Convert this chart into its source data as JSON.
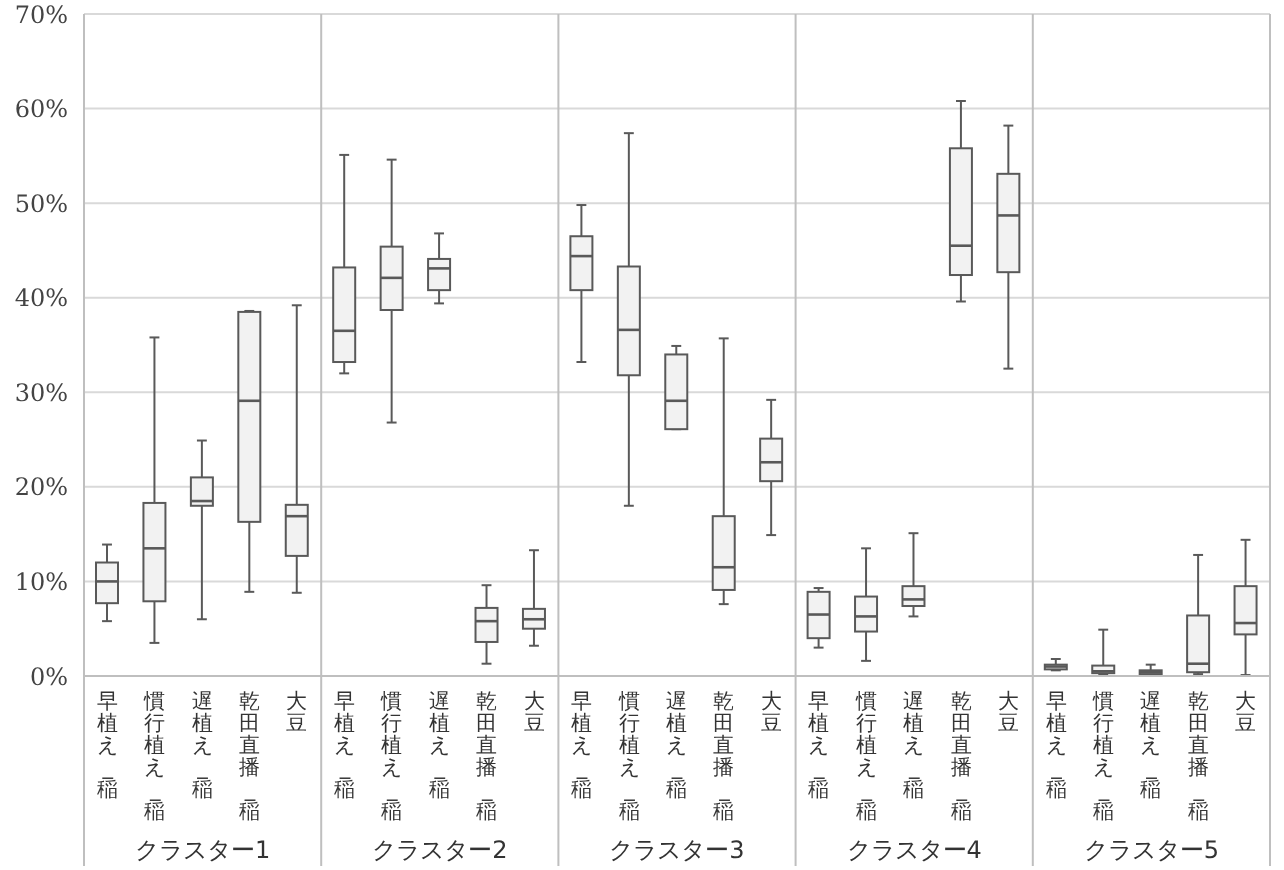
{
  "chart_data": {
    "type": "box",
    "categories": [
      "早植え_稲",
      "慣行植え_稲",
      "遅植え_稲",
      "乾田直播_稲",
      "大豆",
      "早植え_稲",
      "慣行植え_稲",
      "遅植え_稲",
      "乾田直播_稲",
      "大豆",
      "早植え_稲",
      "慣行植え_稲",
      "遅植え_稲",
      "乾田直播_稲",
      "大豆",
      "早植え_稲",
      "慣行植え_稲",
      "遅植え_稲",
      "乾田直播_稲",
      "大豆",
      "早植え_稲",
      "慣行植え_稲",
      "遅植え_稲",
      "乾田直播_稲",
      "大豆"
    ],
    "boxes": [
      {
        "low": 5.8,
        "q1": 7.7,
        "median": 10.0,
        "q3": 12.0,
        "high": 13.9
      },
      {
        "low": 3.5,
        "q1": 7.9,
        "median": 13.5,
        "q3": 18.3,
        "high": 35.8
      },
      {
        "low": 6.0,
        "q1": 18.0,
        "median": 18.5,
        "q3": 21.0,
        "high": 24.9
      },
      {
        "low": 8.9,
        "q1": 16.3,
        "median": 29.1,
        "q3": 38.5,
        "high": 38.6
      },
      {
        "low": 8.8,
        "q1": 12.7,
        "median": 16.9,
        "q3": 18.1,
        "high": 39.2
      },
      {
        "low": 32.0,
        "q1": 33.2,
        "median": 36.5,
        "q3": 43.2,
        "high": 55.1
      },
      {
        "low": 26.8,
        "q1": 38.7,
        "median": 42.1,
        "q3": 45.4,
        "high": 54.6
      },
      {
        "low": 39.4,
        "q1": 40.8,
        "median": 43.1,
        "q3": 44.1,
        "high": 46.8
      },
      {
        "low": 1.3,
        "q1": 3.6,
        "median": 5.8,
        "q3": 7.2,
        "high": 9.6
      },
      {
        "low": 3.2,
        "q1": 5.0,
        "median": 6.0,
        "q3": 7.1,
        "high": 13.3
      },
      {
        "low": 33.2,
        "q1": 40.8,
        "median": 44.4,
        "q3": 46.5,
        "high": 49.8
      },
      {
        "low": 18.0,
        "q1": 31.8,
        "median": 36.6,
        "q3": 43.3,
        "high": 57.4
      },
      {
        "low": 26.1,
        "q1": 26.1,
        "median": 29.1,
        "q3": 34.0,
        "high": 34.9
      },
      {
        "low": 7.6,
        "q1": 9.1,
        "median": 11.5,
        "q3": 16.9,
        "high": 35.7
      },
      {
        "low": 14.9,
        "q1": 20.6,
        "median": 22.6,
        "q3": 25.1,
        "high": 29.2
      },
      {
        "low": 3.0,
        "q1": 4.0,
        "median": 6.5,
        "q3": 8.9,
        "high": 9.3
      },
      {
        "low": 1.6,
        "q1": 4.7,
        "median": 6.3,
        "q3": 8.4,
        "high": 13.5
      },
      {
        "low": 6.3,
        "q1": 7.4,
        "median": 8.1,
        "q3": 9.5,
        "high": 15.1
      },
      {
        "low": 39.6,
        "q1": 42.4,
        "median": 45.5,
        "q3": 55.8,
        "high": 60.8
      },
      {
        "low": 32.5,
        "q1": 42.7,
        "median": 48.7,
        "q3": 53.1,
        "high": 58.2
      },
      {
        "low": 0.6,
        "q1": 0.7,
        "median": 1.0,
        "q3": 1.2,
        "high": 1.8
      },
      {
        "low": 0.2,
        "q1": 0.3,
        "median": 0.5,
        "q3": 1.1,
        "high": 4.9
      },
      {
        "low": 0.2,
        "q1": 0.2,
        "median": 0.4,
        "q3": 0.6,
        "high": 1.2
      },
      {
        "low": 0.2,
        "q1": 0.4,
        "median": 1.3,
        "q3": 6.4,
        "high": 12.8
      },
      {
        "low": 0.1,
        "q1": 4.4,
        "median": 5.6,
        "q3": 9.5,
        "high": 14.4
      }
    ],
    "color": "#f2f2f2",
    "ylim": [
      0,
      70
    ],
    "yticks": [
      {
        "value": 0,
        "label": "0%"
      },
      {
        "value": 10,
        "label": "10%"
      },
      {
        "value": 20,
        "label": "20%"
      },
      {
        "value": 30,
        "label": "30%"
      },
      {
        "value": 40,
        "label": "40%"
      },
      {
        "value": 50,
        "label": "50%"
      },
      {
        "value": 60,
        "label": "60%"
      },
      {
        "value": 70,
        "label": "70%"
      }
    ],
    "grid": "y",
    "annotations": [
      "クラスター1",
      "クラスター2",
      "クラスター3",
      "クラスター4",
      "クラスター5"
    ]
  }
}
